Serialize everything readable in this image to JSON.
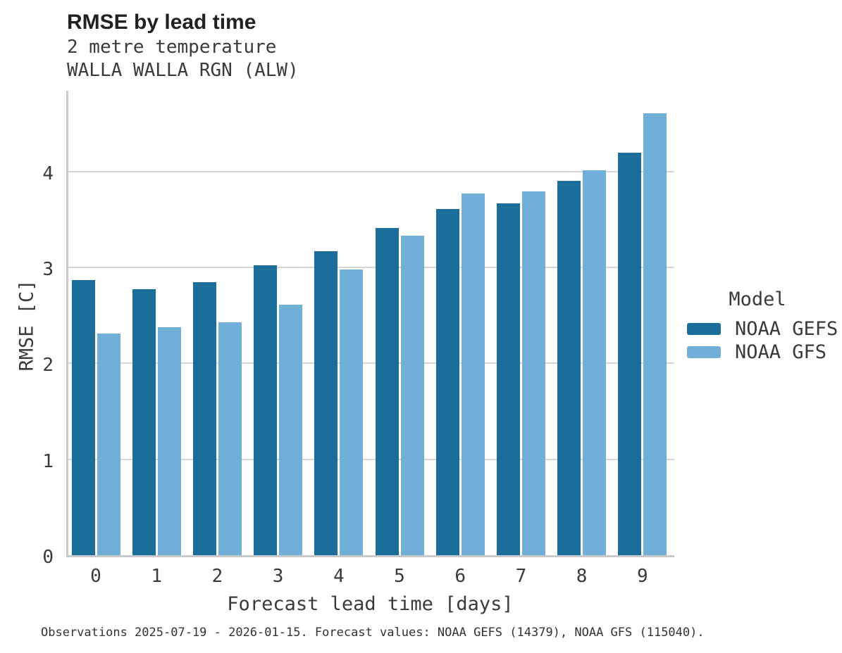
{
  "chart_data": {
    "type": "bar",
    "title": "RMSE by lead time",
    "subtitle": [
      "2 metre temperature",
      "WALLA WALLA RGN (ALW)"
    ],
    "xlabel": "Forecast lead time [days]",
    "ylabel": "RMSE [C]",
    "categories": [
      "0",
      "1",
      "2",
      "3",
      "4",
      "5",
      "6",
      "7",
      "8",
      "9"
    ],
    "series": [
      {
        "name": "NOAA GEFS",
        "color": "#1b6d9a",
        "values": [
          2.87,
          2.77,
          2.85,
          3.02,
          3.17,
          3.41,
          3.61,
          3.67,
          3.9,
          4.2
        ]
      },
      {
        "name": "NOAA GFS",
        "color": "#70b0d8",
        "values": [
          2.31,
          2.38,
          2.43,
          2.61,
          2.98,
          3.33,
          3.77,
          3.79,
          4.01,
          4.61
        ]
      }
    ],
    "yticks": [
      0,
      1,
      2,
      3,
      4
    ],
    "ylim": [
      0,
      4.86
    ],
    "grid": "horizontal",
    "legend_title": "Model",
    "legend_position": "right",
    "caption": "Observations 2025-07-19 - 2026-01-15. Forecast values: NOAA GEFS (14379), NOAA GFS (115040)."
  },
  "colors": {
    "gefs_blue": "#1b6d9a",
    "gfs_blue": "#70b0d8",
    "gridline": "#d6d6d6",
    "axis_spine": "#c9c9c9",
    "text": "#3a3a3a"
  }
}
